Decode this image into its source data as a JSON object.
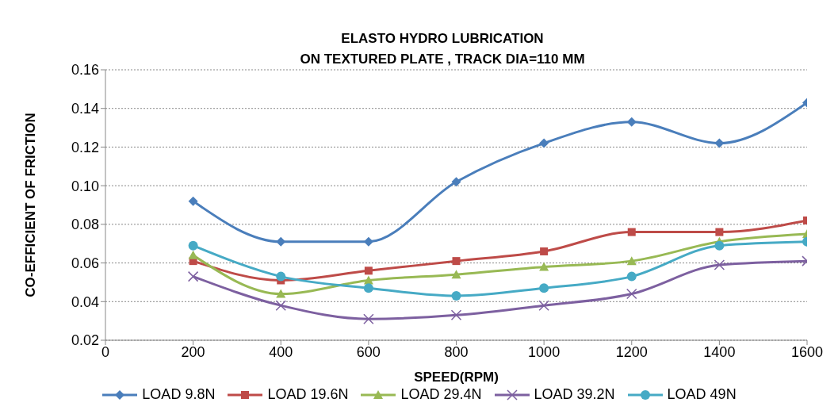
{
  "chart_data": {
    "type": "line",
    "title": "ELASTO HYDRO LUBRICATION\nON TEXTURED PLATE , TRACK DIA=110 MM",
    "xlabel": "SPEED(RPM)",
    "ylabel": "CO-EFFICIENT OF FRICTION",
    "x": [
      200,
      400,
      600,
      800,
      1000,
      1200,
      1400,
      1600
    ],
    "xlim": [
      0,
      1600
    ],
    "xticks": [
      0,
      200,
      400,
      600,
      800,
      1000,
      1200,
      1400,
      1600
    ],
    "ylim": [
      0.02,
      0.16
    ],
    "yticks": [
      {
        "value": 0.02,
        "label": "0.02"
      },
      {
        "value": 0.04,
        "label": "0.04"
      },
      {
        "value": 0.06,
        "label": "0.06"
      },
      {
        "value": 0.08,
        "label": "0.08"
      },
      {
        "value": 0.1,
        "label": "0.10"
      },
      {
        "value": 0.12,
        "label": "0.12"
      },
      {
        "value": 0.14,
        "label": "0.14"
      },
      {
        "value": 0.16,
        "label": "0.16"
      }
    ],
    "grid": "y",
    "legend": "bottom",
    "line_style": "solid",
    "series": [
      {
        "name": "LOAD 9.8N",
        "color": "#4a7ebb",
        "marker": "diamond",
        "values": [
          0.092,
          0.071,
          0.071,
          0.102,
          0.122,
          0.133,
          0.122,
          0.143
        ]
      },
      {
        "name": "LOAD 19.6N",
        "color": "#be4b48",
        "marker": "square",
        "values": [
          0.061,
          0.051,
          0.056,
          0.061,
          0.066,
          0.076,
          0.076,
          0.082
        ]
      },
      {
        "name": "LOAD 29.4N",
        "color": "#98b954",
        "marker": "triangle",
        "values": [
          0.064,
          0.044,
          0.051,
          0.054,
          0.058,
          0.061,
          0.071,
          0.075
        ]
      },
      {
        "name": "LOAD 39.2N",
        "color": "#7d60a0",
        "marker": "cross",
        "values": [
          0.053,
          0.038,
          0.031,
          0.033,
          0.038,
          0.044,
          0.059,
          0.061
        ]
      },
      {
        "name": "LOAD 49N",
        "color": "#46aac5",
        "marker": "circle",
        "values": [
          0.069,
          0.053,
          0.047,
          0.043,
          0.047,
          0.053,
          0.069,
          0.071
        ]
      }
    ]
  }
}
